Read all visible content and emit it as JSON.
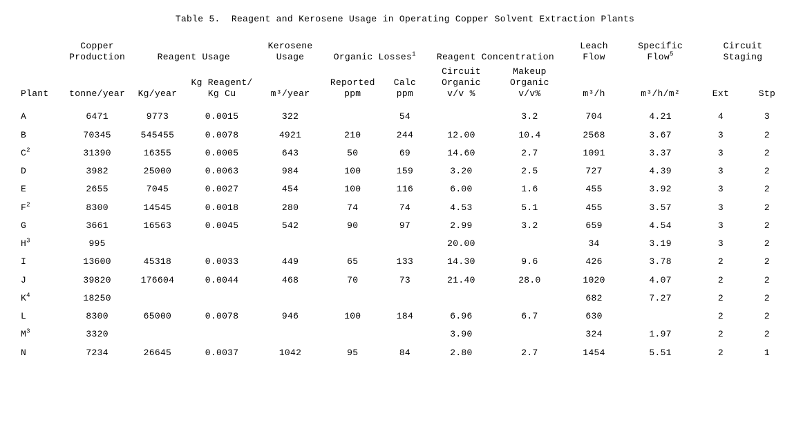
{
  "title": "Table 5.  Reagent and Kerosene Usage in Operating Copper Solvent Extraction Plants",
  "header_groups": {
    "copper_prod": "Copper\nProduction",
    "reagent_usage": "Reagent Usage",
    "kerosene_usage": "Kerosene\nUsage",
    "organic_losses": "Organic Losses",
    "organic_losses_sup": "1",
    "reagent_conc": "Reagent Concentration",
    "leach_flow": "Leach\nFlow",
    "specific_flow": "Specific\nFlow",
    "specific_flow_sup": "5",
    "circuit_staging": "Circuit\nStaging"
  },
  "sub_headers": {
    "plant": "Plant",
    "tonne_year": "tonne/year",
    "kg_year": "Kg/year",
    "kg_reagent_kg_cu": "Kg Reagent/\nKg Cu",
    "m3_year": "m³/year",
    "reported_ppm": "Reported\nppm",
    "calc_ppm": "Calc\nppm",
    "circuit_org": "Circuit\nOrganic\nv/v %",
    "makeup_org": "Makeup\nOrganic\nv/v%",
    "m3_h": "m³/h",
    "m3_h_m2": "m³/h/m²",
    "ext": "Ext",
    "stp": "Stp"
  },
  "rows": [
    {
      "plant": "A",
      "sup": "",
      "tonne": "6471",
      "kgyr": "9773",
      "kgkg": "0.0015",
      "m3yr": "322",
      "rep": "",
      "calc": "54",
      "circ": "",
      "make": "3.2",
      "leach": "704",
      "spec": "4.21",
      "ext": "4",
      "stp": "3"
    },
    {
      "plant": "B",
      "sup": "",
      "tonne": "70345",
      "kgyr": "545455",
      "kgkg": "0.0078",
      "m3yr": "4921",
      "rep": "210",
      "calc": "244",
      "circ": "12.00",
      "make": "10.4",
      "leach": "2568",
      "spec": "3.67",
      "ext": "3",
      "stp": "2"
    },
    {
      "plant": "C",
      "sup": "2",
      "tonne": "31390",
      "kgyr": "16355",
      "kgkg": "0.0005",
      "m3yr": "643",
      "rep": "50",
      "calc": "69",
      "circ": "14.60",
      "make": "2.7",
      "leach": "1091",
      "spec": "3.37",
      "ext": "3",
      "stp": "2"
    },
    {
      "plant": "D",
      "sup": "",
      "tonne": "3982",
      "kgyr": "25000",
      "kgkg": "0.0063",
      "m3yr": "984",
      "rep": "100",
      "calc": "159",
      "circ": "3.20",
      "make": "2.5",
      "leach": "727",
      "spec": "4.39",
      "ext": "3",
      "stp": "2"
    },
    {
      "plant": "E",
      "sup": "",
      "tonne": "2655",
      "kgyr": "7045",
      "kgkg": "0.0027",
      "m3yr": "454",
      "rep": "100",
      "calc": "116",
      "circ": "6.00",
      "make": "1.6",
      "leach": "455",
      "spec": "3.92",
      "ext": "3",
      "stp": "2"
    },
    {
      "plant": "F",
      "sup": "2",
      "tonne": "8300",
      "kgyr": "14545",
      "kgkg": "0.0018",
      "m3yr": "280",
      "rep": "74",
      "calc": "74",
      "circ": "4.53",
      "make": "5.1",
      "leach": "455",
      "spec": "3.57",
      "ext": "3",
      "stp": "2"
    },
    {
      "plant": "G",
      "sup": "",
      "tonne": "3661",
      "kgyr": "16563",
      "kgkg": "0.0045",
      "m3yr": "542",
      "rep": "90",
      "calc": "97",
      "circ": "2.99",
      "make": "3.2",
      "leach": "659",
      "spec": "4.54",
      "ext": "3",
      "stp": "2"
    },
    {
      "plant": "H",
      "sup": "3",
      "tonne": "995",
      "kgyr": "",
      "kgkg": "",
      "m3yr": "",
      "rep": "",
      "calc": "",
      "circ": "20.00",
      "make": "",
      "leach": "34",
      "spec": "3.19",
      "ext": "3",
      "stp": "2"
    },
    {
      "plant": "I",
      "sup": "",
      "tonne": "13600",
      "kgyr": "45318",
      "kgkg": "0.0033",
      "m3yr": "449",
      "rep": "65",
      "calc": "133",
      "circ": "14.30",
      "make": "9.6",
      "leach": "426",
      "spec": "3.78",
      "ext": "2",
      "stp": "2"
    },
    {
      "plant": "J",
      "sup": "",
      "tonne": "39820",
      "kgyr": "176604",
      "kgkg": "0.0044",
      "m3yr": "468",
      "rep": "70",
      "calc": "73",
      "circ": "21.40",
      "make": "28.0",
      "leach": "1020",
      "spec": "4.07",
      "ext": "2",
      "stp": "2"
    },
    {
      "plant": "K",
      "sup": "4",
      "tonne": "18250",
      "kgyr": "",
      "kgkg": "",
      "m3yr": "",
      "rep": "",
      "calc": "",
      "circ": "",
      "make": "",
      "leach": "682",
      "spec": "7.27",
      "ext": "2",
      "stp": "2"
    },
    {
      "plant": "L",
      "sup": "",
      "tonne": "8300",
      "kgyr": "65000",
      "kgkg": "0.0078",
      "m3yr": "946",
      "rep": "100",
      "calc": "184",
      "circ": "6.96",
      "make": "6.7",
      "leach": "630",
      "spec": "",
      "ext": "2",
      "stp": "2"
    },
    {
      "plant": "M",
      "sup": "3",
      "tonne": "3320",
      "kgyr": "",
      "kgkg": "",
      "m3yr": "",
      "rep": "",
      "calc": "",
      "circ": "3.90",
      "make": "",
      "leach": "324",
      "spec": "1.97",
      "ext": "2",
      "stp": "2"
    },
    {
      "plant": "N",
      "sup": "",
      "tonne": "7234",
      "kgyr": "26645",
      "kgkg": "0.0037",
      "m3yr": "1042",
      "rep": "95",
      "calc": "84",
      "circ": "2.80",
      "make": "2.7",
      "leach": "1454",
      "spec": "5.51",
      "ext": "2",
      "stp": "1"
    }
  ],
  "style": {
    "font_family": "Courier New",
    "font_size_pt": 10,
    "text_color": "#000000",
    "background_color": "#ffffff"
  }
}
